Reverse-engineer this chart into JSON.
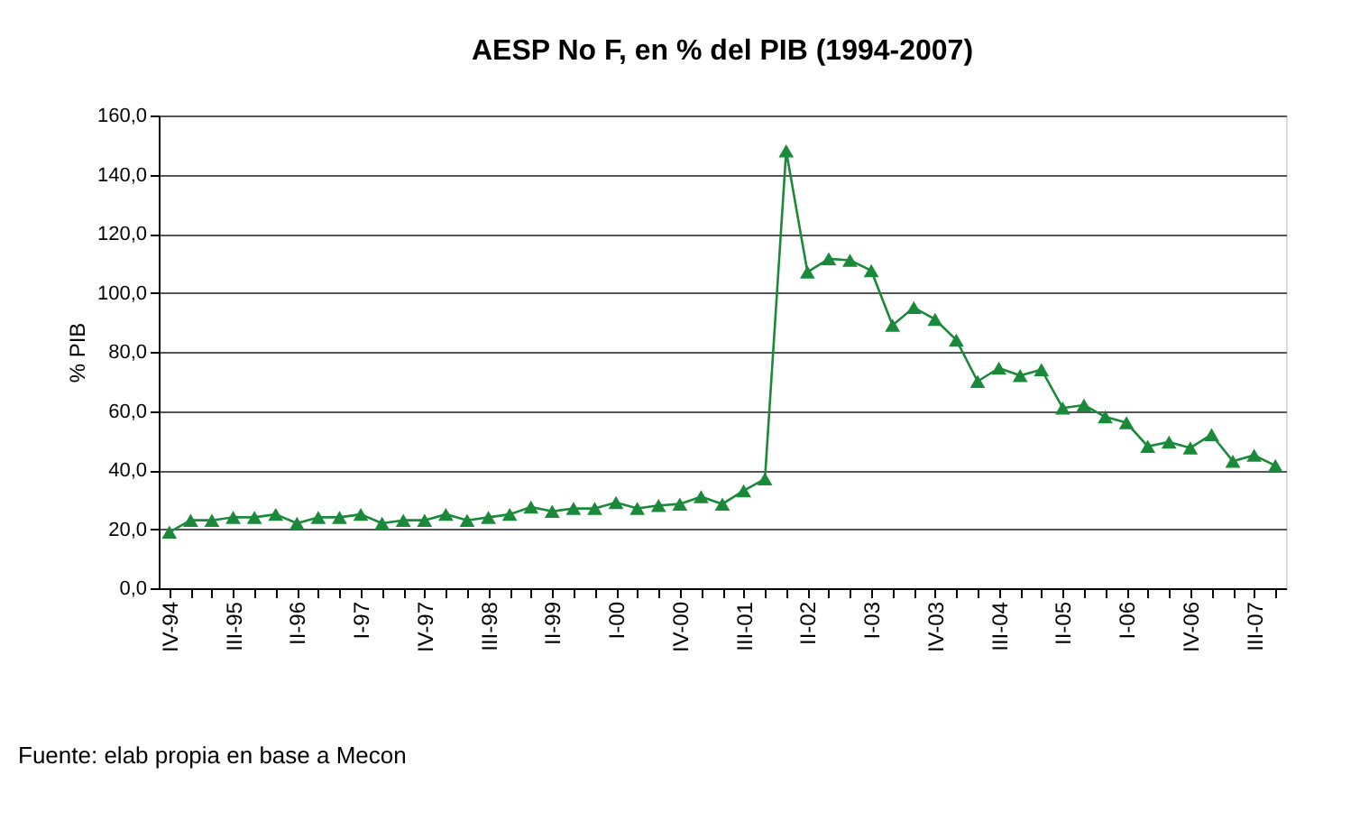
{
  "chart_data": {
    "type": "line",
    "title": "AESP No F, en % del PIB (1994-2007)",
    "ylabel": "% PIB",
    "categories": [
      "IV-94",
      null,
      null,
      "III-95",
      null,
      null,
      "II-96",
      null,
      null,
      "I-97",
      null,
      null,
      "IV-97",
      null,
      null,
      "III-98",
      null,
      null,
      "II-99",
      null,
      null,
      "I-00",
      null,
      null,
      "IV-00",
      null,
      null,
      "III-01",
      null,
      null,
      "II-02",
      null,
      null,
      "I-03",
      null,
      null,
      "IV-03",
      null,
      null,
      "III-04",
      null,
      null,
      "II-05",
      null,
      null,
      "I-06",
      null,
      null,
      "IV-06",
      null,
      null,
      "III-07",
      null
    ],
    "series": [
      {
        "color": "#1a8a3a",
        "values": [
          19,
          23,
          23,
          24,
          24,
          25,
          22,
          24,
          24,
          25,
          22,
          23,
          23,
          25,
          23,
          24,
          25,
          27.5,
          26,
          27,
          27,
          29,
          27,
          28,
          28.5,
          31,
          28.5,
          33,
          37,
          148,
          107,
          111.5,
          111,
          107.5,
          89,
          95,
          91,
          84,
          70,
          74.5,
          72,
          74,
          61,
          62,
          58,
          56,
          48,
          49.5,
          47.5,
          52,
          43,
          45,
          41.5
        ]
      }
    ],
    "ylim": [
      0,
      160
    ],
    "yticks": [
      {
        "value": 0,
        "label": "0,0"
      },
      {
        "value": 20,
        "label": "20,0"
      },
      {
        "value": 40,
        "label": "40,0"
      },
      {
        "value": 60,
        "label": "60,0"
      },
      {
        "value": 80,
        "label": "80,0"
      },
      {
        "value": 100,
        "label": "100,0"
      },
      {
        "value": 120,
        "label": "120,0"
      },
      {
        "value": 140,
        "label": "140,0"
      },
      {
        "value": 160,
        "label": "160,0"
      }
    ],
    "grid": "y",
    "marker": "triangle",
    "line_style": "solid",
    "annotations": [
      "Fuente: elab propia en base a Mecon"
    ]
  }
}
